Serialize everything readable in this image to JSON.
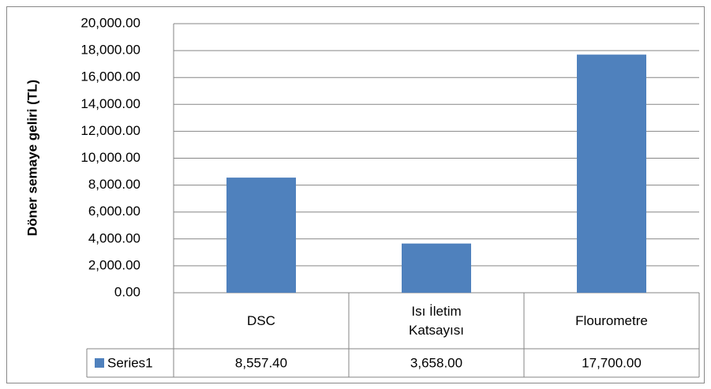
{
  "chart_data": {
    "type": "bar",
    "y_label": "Döner semaye geliri (TL)",
    "categories": [
      "DSC",
      "Isı İletim Katsayısı",
      "Flourometre"
    ],
    "series": [
      {
        "name": "Series1",
        "color": "#4f81bd",
        "values": [
          8557.4,
          3658,
          17700
        ],
        "value_labels": [
          "8,557.40",
          "3,658.00",
          "17,700.00"
        ]
      }
    ],
    "ylim": [
      0,
      20000
    ],
    "yticks": [
      {
        "value": 0,
        "label": "0.00"
      },
      {
        "value": 2000,
        "label": "2,000.00"
      },
      {
        "value": 4000,
        "label": "4,000.00"
      },
      {
        "value": 6000,
        "label": "6,000.00"
      },
      {
        "value": 8000,
        "label": "8,000.00"
      },
      {
        "value": 10000,
        "label": "10,000.00"
      },
      {
        "value": 12000,
        "label": "12,000.00"
      },
      {
        "value": 14000,
        "label": "14,000.00"
      },
      {
        "value": 16000,
        "label": "16,000.00"
      },
      {
        "value": 18000,
        "label": "18,000.00"
      },
      {
        "value": 20000,
        "label": "20,000.00"
      }
    ],
    "grid": true
  }
}
